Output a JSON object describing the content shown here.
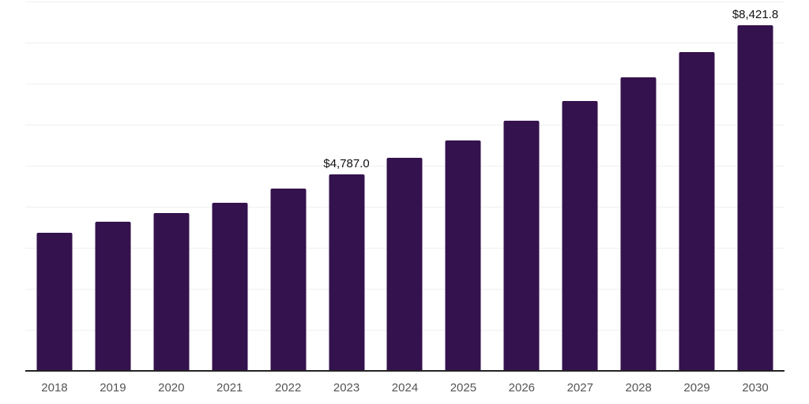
{
  "chart_data": {
    "type": "bar",
    "title": "",
    "xlabel": "",
    "ylabel": "",
    "categories": [
      "2018",
      "2019",
      "2020",
      "2021",
      "2022",
      "2023",
      "2024",
      "2025",
      "2026",
      "2027",
      "2028",
      "2029",
      "2030"
    ],
    "values": [
      3365,
      3640,
      3845,
      4100,
      4435,
      4787.0,
      5190,
      5610,
      6090,
      6585,
      7150,
      7770,
      8421.8
    ],
    "value_labels": {
      "2023": "$4,787.0",
      "2030": "$8,421.8"
    },
    "ylim": [
      0,
      9000
    ],
    "gridline_step": 1000,
    "grid": true,
    "legend": false,
    "y_tick_labels_visible": false
  },
  "colors": {
    "bar": "#34124D",
    "axis_line": "#232323",
    "gridline": "#f0f0f0",
    "tick_label": "#555555",
    "data_label": "#111111",
    "background": "#ffffff"
  }
}
